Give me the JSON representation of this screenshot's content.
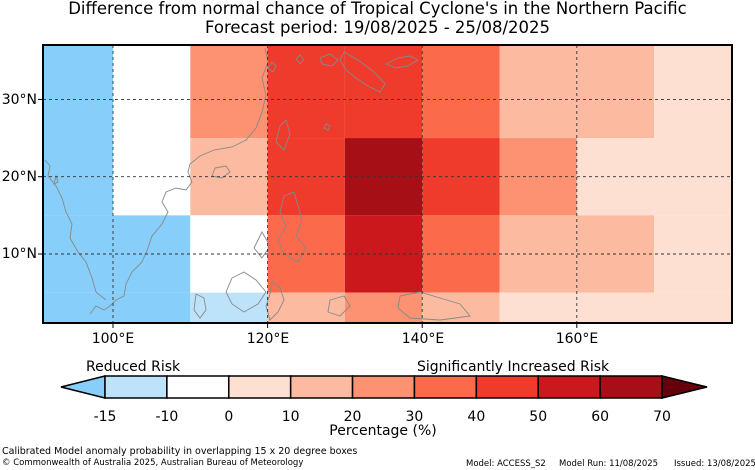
{
  "title_line1": "Difference from normal chance of Tropical Cyclone's in the Northern Pacific",
  "title_line2": "Forecast period: 19/08/2025 - 25/08/2025",
  "map": {
    "lat_ticks": [
      "30°N",
      "20°N",
      "10°N"
    ],
    "lon_ticks": [
      "100°E",
      "120°E",
      "140°E",
      "160°E"
    ],
    "grid": "dashed"
  },
  "legend": {
    "left_label": "Reduced Risk",
    "right_label": "Significantly Increased Risk",
    "axis_label": "Percentage (%)",
    "ticks": [
      "-15",
      "-10",
      "0",
      "10",
      "20",
      "30",
      "40",
      "50",
      "60",
      "70"
    ],
    "bins": [
      {
        "range": "< -15",
        "color": "#87cefa"
      },
      {
        "range": "-15 to -10",
        "color": "#bde3fb"
      },
      {
        "range": "-10 to 0",
        "color": "#ffffff"
      },
      {
        "range": "0 to 10",
        "color": "#fee0d2"
      },
      {
        "range": "10 to 20",
        "color": "#fcbba1"
      },
      {
        "range": "20 to 30",
        "color": "#fc9272"
      },
      {
        "range": "30 to 40",
        "color": "#fb6a4a"
      },
      {
        "range": "40 to 50",
        "color": "#ef3b2c"
      },
      {
        "range": "50 to 60",
        "color": "#cb181d"
      },
      {
        "range": "60 to 70",
        "color": "#a50f15"
      },
      {
        "range": "> 70",
        "color": "#67000d"
      }
    ]
  },
  "footer": {
    "note": "Calibrated Model anomaly probability in overlapping 15 x 20 degree boxes",
    "copyright": "© Commonwealth of Australia 2025, Australian Bureau of Meteorology",
    "model": "Model: ACCESS_S2",
    "model_run": "Model Run: 11/08/2025",
    "issued": "Issued: 13/08/2025"
  },
  "anomaly_cells": [
    {
      "lon": [
        90,
        100
      ],
      "lat": [
        25,
        37
      ],
      "bin": 0
    },
    {
      "lon": [
        100,
        110
      ],
      "lat": [
        25,
        37
      ],
      "bin": 2
    },
    {
      "lon": [
        110,
        120
      ],
      "lat": [
        25,
        37
      ],
      "bin": 5
    },
    {
      "lon": [
        120,
        130
      ],
      "lat": [
        25,
        37
      ],
      "bin": 7
    },
    {
      "lon": [
        130,
        140
      ],
      "lat": [
        25,
        37
      ],
      "bin": 7
    },
    {
      "lon": [
        140,
        150
      ],
      "lat": [
        25,
        37
      ],
      "bin": 6
    },
    {
      "lon": [
        150,
        160
      ],
      "lat": [
        25,
        37
      ],
      "bin": 4
    },
    {
      "lon": [
        160,
        170
      ],
      "lat": [
        25,
        37
      ],
      "bin": 4
    },
    {
      "lon": [
        170,
        180
      ],
      "lat": [
        25,
        37
      ],
      "bin": 3
    },
    {
      "lon": [
        90,
        100
      ],
      "lat": [
        15,
        25
      ],
      "bin": 0
    },
    {
      "lon": [
        100,
        110
      ],
      "lat": [
        15,
        25
      ],
      "bin": 2
    },
    {
      "lon": [
        110,
        120
      ],
      "lat": [
        15,
        25
      ],
      "bin": 4
    },
    {
      "lon": [
        120,
        130
      ],
      "lat": [
        15,
        25
      ],
      "bin": 7
    },
    {
      "lon": [
        130,
        140
      ],
      "lat": [
        15,
        25
      ],
      "bin": 9
    },
    {
      "lon": [
        140,
        150
      ],
      "lat": [
        15,
        25
      ],
      "bin": 7
    },
    {
      "lon": [
        150,
        160
      ],
      "lat": [
        15,
        25
      ],
      "bin": 5
    },
    {
      "lon": [
        160,
        170
      ],
      "lat": [
        15,
        25
      ],
      "bin": 3
    },
    {
      "lon": [
        170,
        180
      ],
      "lat": [
        15,
        25
      ],
      "bin": 3
    },
    {
      "lon": [
        90,
        100
      ],
      "lat": [
        5,
        15
      ],
      "bin": 0
    },
    {
      "lon": [
        100,
        110
      ],
      "lat": [
        5,
        15
      ],
      "bin": 0
    },
    {
      "lon": [
        110,
        120
      ],
      "lat": [
        5,
        15
      ],
      "bin": 2
    },
    {
      "lon": [
        120,
        130
      ],
      "lat": [
        5,
        15
      ],
      "bin": 6
    },
    {
      "lon": [
        130,
        140
      ],
      "lat": [
        5,
        15
      ],
      "bin": 8
    },
    {
      "lon": [
        140,
        150
      ],
      "lat": [
        5,
        15
      ],
      "bin": 6
    },
    {
      "lon": [
        150,
        160
      ],
      "lat": [
        5,
        15
      ],
      "bin": 4
    },
    {
      "lon": [
        160,
        170
      ],
      "lat": [
        5,
        15
      ],
      "bin": 4
    },
    {
      "lon": [
        170,
        180
      ],
      "lat": [
        5,
        15
      ],
      "bin": 3
    },
    {
      "lon": [
        90,
        100
      ],
      "lat": [
        0,
        5
      ],
      "bin": 0
    },
    {
      "lon": [
        100,
        110
      ],
      "lat": [
        0,
        5
      ],
      "bin": 0
    },
    {
      "lon": [
        110,
        120
      ],
      "lat": [
        0,
        5
      ],
      "bin": 1
    },
    {
      "lon": [
        120,
        130
      ],
      "lat": [
        0,
        5
      ],
      "bin": 4
    },
    {
      "lon": [
        130,
        140
      ],
      "lat": [
        0,
        5
      ],
      "bin": 5
    },
    {
      "lon": [
        140,
        150
      ],
      "lat": [
        0,
        5
      ],
      "bin": 4
    },
    {
      "lon": [
        150,
        160
      ],
      "lat": [
        0,
        5
      ],
      "bin": 3
    },
    {
      "lon": [
        160,
        170
      ],
      "lat": [
        0,
        5
      ],
      "bin": 3
    },
    {
      "lon": [
        170,
        180
      ],
      "lat": [
        0,
        5
      ],
      "bin": 3
    }
  ]
}
